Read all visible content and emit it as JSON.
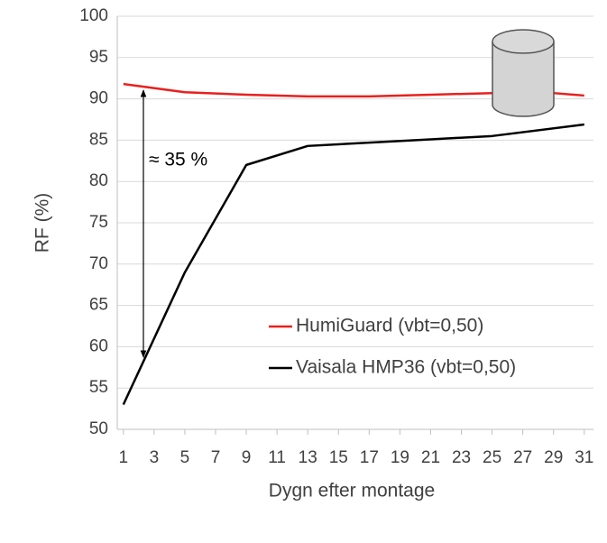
{
  "chart_data": {
    "type": "line",
    "x_label": "Dygn efter montage",
    "y_label": "RF (%)",
    "annotation": "≈ 35 %",
    "xlim": [
      0.6,
      31.6
    ],
    "xticks": [
      1,
      3,
      5,
      7,
      9,
      11,
      13,
      15,
      17,
      19,
      21,
      23,
      25,
      27,
      29,
      31
    ],
    "ylim": [
      50,
      100
    ],
    "yticks": [
      50,
      55,
      60,
      65,
      70,
      75,
      80,
      85,
      90,
      95,
      100
    ],
    "grid": true,
    "legend": "lower right",
    "series": [
      {
        "name": "HumiGuard (vbt=0,50)",
        "color": "#e8201e",
        "x": [
          1,
          5,
          9,
          13,
          17,
          21,
          25,
          29,
          31
        ],
        "values": [
          91.8,
          90.8,
          90.5,
          90.3,
          90.3,
          90.5,
          90.7,
          90.7,
          90.4
        ]
      },
      {
        "name": "Vaisala HMP36 (vbt=0,50)",
        "color": "#000000",
        "x": [
          1,
          5,
          9,
          13,
          17,
          21,
          25,
          31
        ],
        "values": [
          53,
          69,
          82,
          84.3,
          84.7,
          85.1,
          85.5,
          86.9
        ]
      }
    ]
  }
}
